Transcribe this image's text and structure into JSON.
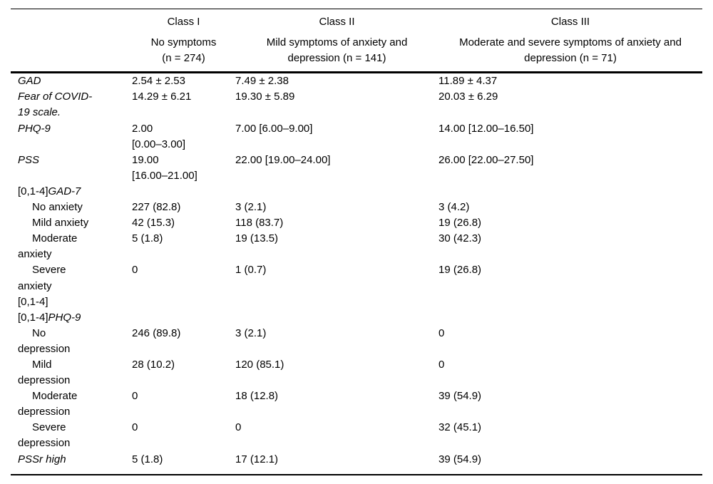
{
  "table": {
    "colors": {
      "text": "#000000",
      "rule": "#000000",
      "background": "#ffffff"
    },
    "columns": [
      {
        "class_label": "",
        "subheader": ""
      },
      {
        "class_label": "Class I",
        "subheader": "No symptoms\n(n = 274)"
      },
      {
        "class_label": "Class II",
        "subheader": "Mild symptoms of anxiety and\ndepression (n = 141)"
      },
      {
        "class_label": "Class III",
        "subheader": "Moderate and severe symptoms of anxiety and\ndepression (n = 71)"
      }
    ],
    "rows": [
      {
        "prefix": "",
        "label": "GAD",
        "italic": true,
        "indent": false,
        "values": [
          "2.54 ± 2.53",
          "7.49 ± 2.38",
          "11.89 ± 4.37"
        ]
      },
      {
        "prefix": "",
        "label": "Fear of COVID-\n19 scale.",
        "italic": true,
        "indent": false,
        "values": [
          "14.29 ± 6.21",
          "19.30 ± 5.89",
          "20.03 ± 6.29"
        ]
      },
      {
        "prefix": "",
        "label": "PHQ-9",
        "italic": true,
        "indent": false,
        "values": [
          "2.00\n[0.00–3.00]",
          "7.00 [6.00–9.00]",
          "14.00 [12.00–16.50]"
        ]
      },
      {
        "prefix": "",
        "label": "PSS",
        "italic": true,
        "indent": false,
        "values": [
          "19.00\n[16.00–21.00]",
          "22.00 [19.00–24.00]",
          "26.00 [22.00–27.50]"
        ]
      },
      {
        "prefix": "[0,1-4]",
        "label": "GAD-7",
        "italic": true,
        "indent": false,
        "values": [
          "",
          "",
          ""
        ]
      },
      {
        "prefix": "",
        "label": "No anxiety",
        "italic": false,
        "indent": true,
        "values": [
          "227 (82.8)",
          "3 (2.1)",
          "3 (4.2)"
        ]
      },
      {
        "prefix": "",
        "label": "Mild anxiety",
        "italic": false,
        "indent": true,
        "values": [
          "42 (15.3)",
          "118 (83.7)",
          "19 (26.8)"
        ]
      },
      {
        "prefix": "",
        "label": "Moderate\nanxiety",
        "italic": false,
        "indent": true,
        "values": [
          "5 (1.8)",
          "19 (13.5)",
          "30 (42.3)"
        ]
      },
      {
        "prefix": "",
        "label": "Severe\nanxiety",
        "italic": false,
        "indent": true,
        "values": [
          "0",
          "1 (0.7)",
          "19 (26.8)"
        ]
      },
      {
        "prefix": "",
        "label": "[0,1-4]",
        "italic": false,
        "indent": false,
        "values": [
          "",
          "",
          ""
        ]
      },
      {
        "prefix": "[0,1-4]",
        "label": "PHQ-9",
        "italic": true,
        "indent": false,
        "values": [
          "",
          "",
          ""
        ]
      },
      {
        "prefix": "",
        "label": "No\ndepression",
        "italic": false,
        "indent": true,
        "values": [
          "246 (89.8)",
          "3 (2.1)",
          "0"
        ]
      },
      {
        "prefix": "",
        "label": "Mild\ndepression",
        "italic": false,
        "indent": true,
        "values": [
          "28 (10.2)",
          "120 (85.1)",
          "0"
        ]
      },
      {
        "prefix": "",
        "label": "Moderate\ndepression",
        "italic": false,
        "indent": true,
        "values": [
          "0",
          "18 (12.8)",
          "39 (54.9)"
        ]
      },
      {
        "prefix": "",
        "label": "Severe\ndepression",
        "italic": false,
        "indent": true,
        "values": [
          "0",
          "0",
          "32 (45.1)"
        ]
      },
      {
        "prefix": "",
        "label": "PSSr high",
        "italic": true,
        "indent": false,
        "values": [
          "5 (1.8)",
          "17 (12.1)",
          "39 (54.9)"
        ]
      }
    ]
  }
}
